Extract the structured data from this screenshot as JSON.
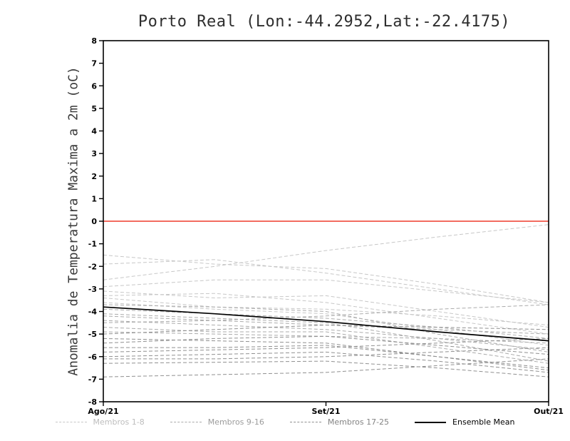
{
  "page": {
    "background": "#ffffff"
  },
  "chart_data": {
    "type": "line",
    "title": "Porto Real (Lon:-44.2952,Lat:-22.4175)",
    "ylabel": "Anomalia de Temperatura Maxima a 2m (oC)",
    "xlim": [
      0,
      2
    ],
    "ylim": [
      -8,
      8
    ],
    "yticks": [
      -8,
      -7,
      -6,
      -5,
      -4,
      -3,
      -2,
      -1,
      0,
      1,
      2,
      3,
      4,
      5,
      6,
      7,
      8
    ],
    "x_ticks": [
      {
        "x": 0,
        "label": "Ago/21"
      },
      {
        "x": 1,
        "label": "Set/21"
      },
      {
        "x": 2,
        "label": "Out/21"
      }
    ],
    "x_sample": [
      0,
      0.5,
      1,
      1.5,
      2
    ],
    "zero_line": {
      "y": 0,
      "color": "#ef3b2c"
    },
    "groups": [
      {
        "name": "Membros 1-8",
        "color": "#c7c7c7",
        "dash": "5 3"
      },
      {
        "name": "Membros 9-16",
        "color": "#ababab",
        "dash": "5 3"
      },
      {
        "name": "Membros 17-25",
        "color": "#909090",
        "dash": "5 3"
      },
      {
        "name": "Ensemble Mean",
        "color": "#000000",
        "dash": null
      }
    ],
    "members": [
      {
        "group": 0,
        "values": [
          -1.5,
          -1.9,
          -2.1,
          -2.8,
          -3.6
        ]
      },
      {
        "group": 0,
        "values": [
          -1.9,
          -1.7,
          -2.3,
          -3.0,
          -3.7
        ]
      },
      {
        "group": 0,
        "values": [
          -2.6,
          -2.0,
          -1.3,
          -0.7,
          -0.15
        ]
      },
      {
        "group": 0,
        "values": [
          -2.9,
          -2.6,
          -2.6,
          -3.1,
          -3.6
        ]
      },
      {
        "group": 0,
        "values": [
          -3.1,
          -3.4,
          -3.3,
          -4.0,
          -4.7
        ]
      },
      {
        "group": 0,
        "values": [
          -3.3,
          -3.2,
          -3.6,
          -4.3,
          -5.0
        ]
      },
      {
        "group": 0,
        "values": [
          -3.4,
          -3.8,
          -3.9,
          -4.2,
          -4.6
        ]
      },
      {
        "group": 0,
        "values": [
          -3.6,
          -3.9,
          -4.1,
          -4.8,
          -5.5
        ]
      },
      {
        "group": 1,
        "values": [
          -3.7,
          -3.8,
          -4.0,
          -5.0,
          -5.8
        ]
      },
      {
        "group": 1,
        "values": [
          -3.9,
          -4.1,
          -4.3,
          -4.7,
          -5.2
        ]
      },
      {
        "group": 1,
        "values": [
          -4.1,
          -4.3,
          -4.5,
          -5.3,
          -6.2
        ]
      },
      {
        "group": 1,
        "values": [
          -4.2,
          -4.4,
          -4.6,
          -4.8,
          -5.0
        ]
      },
      {
        "group": 1,
        "values": [
          -4.4,
          -4.6,
          -4.8,
          -5.2,
          -5.7
        ]
      },
      {
        "group": 1,
        "values": [
          -4.5,
          -4.4,
          -4.2,
          -3.9,
          -3.7
        ]
      },
      {
        "group": 1,
        "values": [
          -4.7,
          -4.9,
          -4.9,
          -5.6,
          -6.3
        ]
      },
      {
        "group": 1,
        "values": [
          -4.9,
          -5.0,
          -5.1,
          -5.2,
          -5.4
        ]
      },
      {
        "group": 2,
        "values": [
          -5.0,
          -4.8,
          -4.6,
          -4.7,
          -4.8
        ]
      },
      {
        "group": 2,
        "values": [
          -5.2,
          -5.3,
          -5.4,
          -6.0,
          -6.5
        ]
      },
      {
        "group": 2,
        "values": [
          -5.4,
          -5.2,
          -5.1,
          -5.5,
          -5.9
        ]
      },
      {
        "group": 2,
        "values": [
          -5.6,
          -5.6,
          -5.5,
          -6.0,
          -6.6
        ]
      },
      {
        "group": 2,
        "values": [
          -5.8,
          -5.7,
          -5.6,
          -5.4,
          -5.2
        ]
      },
      {
        "group": 2,
        "values": [
          -6.0,
          -5.9,
          -5.8,
          -6.2,
          -6.7
        ]
      },
      {
        "group": 2,
        "values": [
          -6.1,
          -6.1,
          -6.0,
          -5.8,
          -5.6
        ]
      },
      {
        "group": 2,
        "values": [
          -6.3,
          -6.25,
          -6.2,
          -6.5,
          -6.9
        ]
      },
      {
        "group": 2,
        "values": [
          -6.9,
          -6.8,
          -6.7,
          -6.4,
          -6.1
        ]
      }
    ],
    "mean": {
      "values": [
        -3.8,
        -4.1,
        -4.45,
        -4.9,
        -5.3
      ]
    },
    "legend": [
      {
        "label": "Membros 1-8",
        "color": "#c7c7c7",
        "text_color": "#bdbdbd",
        "dashed": true
      },
      {
        "label": "Membros 9-16",
        "color": "#ababab",
        "text_color": "#9c9c9c",
        "dashed": true
      },
      {
        "label": "Membros 17-25",
        "color": "#909090",
        "text_color": "#848484",
        "dashed": true
      },
      {
        "label": "Ensemble Mean",
        "color": "#000000",
        "text_color": "#000000",
        "dashed": false
      }
    ]
  }
}
